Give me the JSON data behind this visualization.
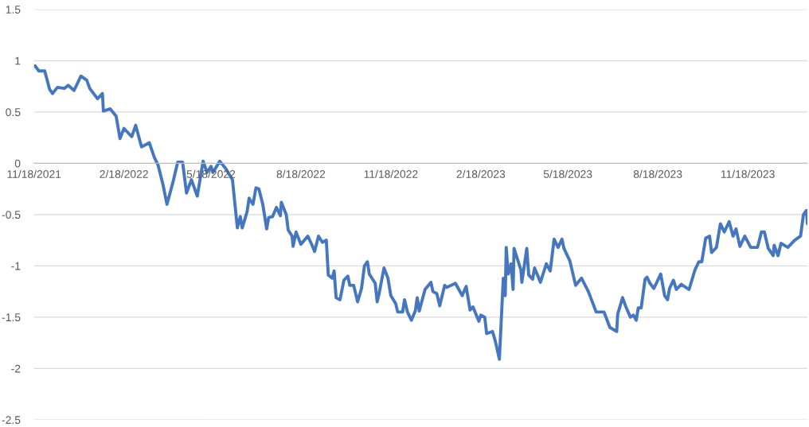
{
  "chart_data": {
    "type": "line",
    "x": [
      "2021-11-19",
      "2021-11-23",
      "2021-11-29",
      "2021-12-04",
      "2021-12-07",
      "2021-12-12",
      "2021-12-19",
      "2021-12-23",
      "2021-12-29",
      "2022-01-05",
      "2022-01-11",
      "2022-01-14",
      "2022-01-22",
      "2022-01-27",
      "2022-01-28",
      "2022-02-04",
      "2022-02-10",
      "2022-02-14",
      "2022-02-18",
      "2022-02-26",
      "2022-03-02",
      "2022-03-08",
      "2022-03-16",
      "2022-03-21",
      "2022-03-25",
      "2022-03-30",
      "2022-04-03",
      "2022-04-09",
      "2022-04-14",
      "2022-04-19",
      "2022-04-23",
      "2022-04-28",
      "2022-05-04",
      "2022-05-10",
      "2022-05-14",
      "2022-05-18",
      "2022-05-20",
      "2022-05-27",
      "2022-06-02",
      "2022-06-09",
      "2022-06-14",
      "2022-06-17",
      "2022-06-19",
      "2022-06-24",
      "2022-06-26",
      "2022-06-30",
      "2022-07-03",
      "2022-07-06",
      "2022-07-10",
      "2022-07-14",
      "2022-07-16",
      "2022-07-20",
      "2022-07-24",
      "2022-07-28",
      "2022-07-29",
      "2022-08-03",
      "2022-08-05",
      "2022-08-09",
      "2022-08-10",
      "2022-08-13",
      "2022-08-18",
      "2022-08-25",
      "2022-08-29",
      "2022-09-01",
      "2022-09-05",
      "2022-09-09",
      "2022-09-13",
      "2022-09-15",
      "2022-09-19",
      "2022-09-21",
      "2022-09-23",
      "2022-09-27",
      "2022-10-01",
      "2022-10-05",
      "2022-10-07",
      "2022-10-11",
      "2022-10-15",
      "2022-10-19",
      "2022-10-22",
      "2022-10-25",
      "2022-10-27",
      "2022-11-02",
      "2022-11-04",
      "2022-11-06",
      "2022-11-11",
      "2022-11-15",
      "2022-11-18",
      "2022-11-23",
      "2022-11-25",
      "2022-11-30",
      "2022-12-02",
      "2022-12-05",
      "2022-12-09",
      "2022-12-13",
      "2022-12-15",
      "2022-12-17",
      "2022-12-23",
      "2022-12-29",
      "2022-12-31",
      "2023-01-04",
      "2023-01-07",
      "2023-01-12",
      "2023-01-14",
      "2023-01-23",
      "2023-01-30",
      "2023-02-03",
      "2023-02-07",
      "2023-02-10",
      "2023-02-16",
      "2023-02-18",
      "2023-02-22",
      "2023-02-24",
      "2023-03-02",
      "2023-03-05",
      "2023-03-09",
      "2023-03-13",
      "2023-03-15",
      "2023-03-16",
      "2023-03-18",
      "2023-03-21",
      "2023-03-23",
      "2023-03-24",
      "2023-03-31",
      "2023-04-01",
      "2023-04-06",
      "2023-04-08",
      "2023-04-12",
      "2023-04-14",
      "2023-04-20",
      "2023-04-26",
      "2023-04-30",
      "2023-05-04",
      "2023-05-08",
      "2023-05-12",
      "2023-05-14",
      "2023-05-20",
      "2023-05-26",
      "2023-06-01",
      "2023-06-08",
      "2023-06-16",
      "2023-06-24",
      "2023-06-30",
      "2023-07-07",
      "2023-07-08",
      "2023-07-13",
      "2023-07-16",
      "2023-07-21",
      "2023-07-24",
      "2023-07-27",
      "2023-07-29",
      "2023-08-01",
      "2023-08-05",
      "2023-08-07",
      "2023-08-10",
      "2023-08-14",
      "2023-08-21",
      "2023-08-25",
      "2023-08-28",
      "2023-08-30",
      "2023-09-03",
      "2023-09-06",
      "2023-09-11",
      "2023-09-19",
      "2023-09-25",
      "2023-09-29",
      "2023-10-02",
      "2023-10-06",
      "2023-10-10",
      "2023-10-12",
      "2023-10-17",
      "2023-10-21",
      "2023-10-25",
      "2023-10-30",
      "2023-11-03",
      "2023-11-06",
      "2023-11-10",
      "2023-11-15",
      "2023-11-21",
      "2023-11-28",
      "2023-12-02",
      "2023-12-05",
      "2023-12-09",
      "2023-12-14",
      "2023-12-15",
      "2023-12-19",
      "2023-12-22",
      "2023-12-29",
      "2024-01-05",
      "2024-01-11",
      "2024-01-14",
      "2024-01-17",
      "2024-01-18"
    ],
    "series": [
      {
        "color": "#4677be",
        "values": [
          0.95,
          0.9,
          0.9,
          0.72,
          0.68,
          0.74,
          0.73,
          0.76,
          0.71,
          0.85,
          0.81,
          0.73,
          0.63,
          0.68,
          0.51,
          0.53,
          0.46,
          0.24,
          0.34,
          0.26,
          0.37,
          0.16,
          0.2,
          0.06,
          -0.02,
          -0.21,
          -0.4,
          -0.19,
          0.01,
          0.01,
          -0.29,
          -0.16,
          -0.32,
          0.02,
          -0.09,
          -0.03,
          -0.09,
          0.02,
          -0.05,
          -0.16,
          -0.63,
          -0.52,
          -0.63,
          -0.47,
          -0.34,
          -0.4,
          -0.24,
          -0.25,
          -0.4,
          -0.64,
          -0.53,
          -0.52,
          -0.43,
          -0.51,
          -0.38,
          -0.5,
          -0.65,
          -0.71,
          -0.81,
          -0.67,
          -0.79,
          -0.71,
          -0.79,
          -0.86,
          -0.71,
          -0.77,
          -0.75,
          -1.09,
          -1.12,
          -1.05,
          -1.31,
          -1.33,
          -1.14,
          -1.1,
          -1.19,
          -1.19,
          -1.35,
          -1.22,
          -1.0,
          -0.96,
          -1.08,
          -1.17,
          -1.35,
          -1.27,
          -1.02,
          -1.12,
          -1.29,
          -1.37,
          -1.45,
          -1.45,
          -1.33,
          -1.45,
          -1.53,
          -1.44,
          -1.31,
          -1.44,
          -1.23,
          -1.16,
          -1.25,
          -1.27,
          -1.39,
          -1.19,
          -1.21,
          -1.17,
          -1.29,
          -1.2,
          -1.43,
          -1.4,
          -1.54,
          -1.48,
          -1.5,
          -1.66,
          -1.64,
          -1.74,
          -1.91,
          -1.12,
          -1.29,
          -0.82,
          -1.08,
          -0.98,
          -1.23,
          -0.83,
          -1.04,
          -1.16,
          -0.83,
          -1.09,
          -1.13,
          -1.02,
          -1.16,
          -0.98,
          -1.05,
          -0.74,
          -0.82,
          -0.74,
          -0.83,
          -0.95,
          -1.19,
          -1.12,
          -1.25,
          -1.45,
          -1.45,
          -1.6,
          -1.64,
          -1.47,
          -1.31,
          -1.39,
          -1.5,
          -1.48,
          -1.53,
          -1.41,
          -1.41,
          -1.13,
          -1.11,
          -1.17,
          -1.22,
          -1.08,
          -1.29,
          -1.33,
          -1.22,
          -1.14,
          -1.23,
          -1.18,
          -1.23,
          -1.04,
          -0.96,
          -0.96,
          -0.73,
          -0.71,
          -0.87,
          -0.82,
          -0.59,
          -0.67,
          -0.57,
          -0.71,
          -0.64,
          -0.81,
          -0.71,
          -0.82,
          -0.82,
          -0.67,
          -0.67,
          -0.83,
          -0.9,
          -0.8,
          -0.9,
          -0.78,
          -0.82,
          -0.75,
          -0.71,
          -0.5,
          -0.46,
          -0.59
        ]
      }
    ],
    "xlim": [
      "2021-11-18",
      "2024-01-18"
    ],
    "xticks": [
      {
        "value": "2021-11-18",
        "label": "11/18/2021"
      },
      {
        "value": "2022-02-18",
        "label": "2/18/2022"
      },
      {
        "value": "2022-05-18",
        "label": "5/18/2022"
      },
      {
        "value": "2022-08-18",
        "label": "8/18/2022"
      },
      {
        "value": "2022-11-18",
        "label": "11/18/2022"
      },
      {
        "value": "2023-02-18",
        "label": "2/18/2023"
      },
      {
        "value": "2023-05-18",
        "label": "5/18/2023"
      },
      {
        "value": "2023-08-18",
        "label": "8/18/2023"
      },
      {
        "value": "2023-11-18",
        "label": "11/18/2023"
      }
    ],
    "ylim": [
      -2.5,
      1.5
    ],
    "yticks": [
      -2.5,
      -2,
      -1.5,
      -1,
      -0.5,
      0,
      0.5,
      1,
      1.5
    ],
    "grid": "y"
  }
}
